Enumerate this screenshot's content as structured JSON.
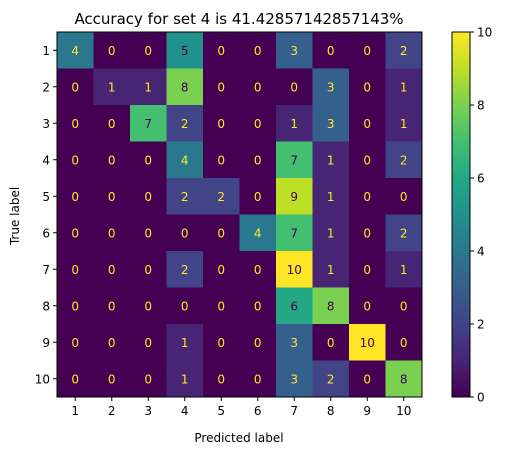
{
  "chart_data": {
    "type": "heatmap",
    "title": "Accuracy for set 4 is 41.42857142857143%",
    "xlabel": "Predicted label",
    "ylabel": "True label",
    "x_categories": [
      "1",
      "2",
      "3",
      "4",
      "5",
      "6",
      "7",
      "8",
      "9",
      "10"
    ],
    "y_categories": [
      "1",
      "2",
      "3",
      "4",
      "5",
      "6",
      "7",
      "8",
      "9",
      "10"
    ],
    "values": [
      [
        4,
        0,
        0,
        5,
        0,
        0,
        3,
        0,
        0,
        2
      ],
      [
        0,
        1,
        1,
        8,
        0,
        0,
        0,
        3,
        0,
        1
      ],
      [
        0,
        0,
        7,
        2,
        0,
        0,
        1,
        3,
        0,
        1
      ],
      [
        0,
        0,
        0,
        4,
        0,
        0,
        7,
        1,
        0,
        2
      ],
      [
        0,
        0,
        0,
        2,
        2,
        0,
        9,
        1,
        0,
        0
      ],
      [
        0,
        0,
        0,
        0,
        0,
        4,
        7,
        1,
        0,
        2
      ],
      [
        0,
        0,
        0,
        2,
        0,
        0,
        10,
        1,
        0,
        1
      ],
      [
        0,
        0,
        0,
        0,
        0,
        0,
        6,
        8,
        0,
        0
      ],
      [
        0,
        0,
        0,
        1,
        0,
        0,
        3,
        0,
        10,
        0
      ],
      [
        0,
        0,
        0,
        1,
        0,
        0,
        3,
        2,
        0,
        8
      ]
    ],
    "colormap": "viridis",
    "vmin": 0,
    "vmax": 10,
    "colorbar_ticks": [
      "0",
      "2",
      "4",
      "6",
      "8",
      "10"
    ],
    "text_color_low": "#fde725",
    "text_color_high": "#440154"
  }
}
